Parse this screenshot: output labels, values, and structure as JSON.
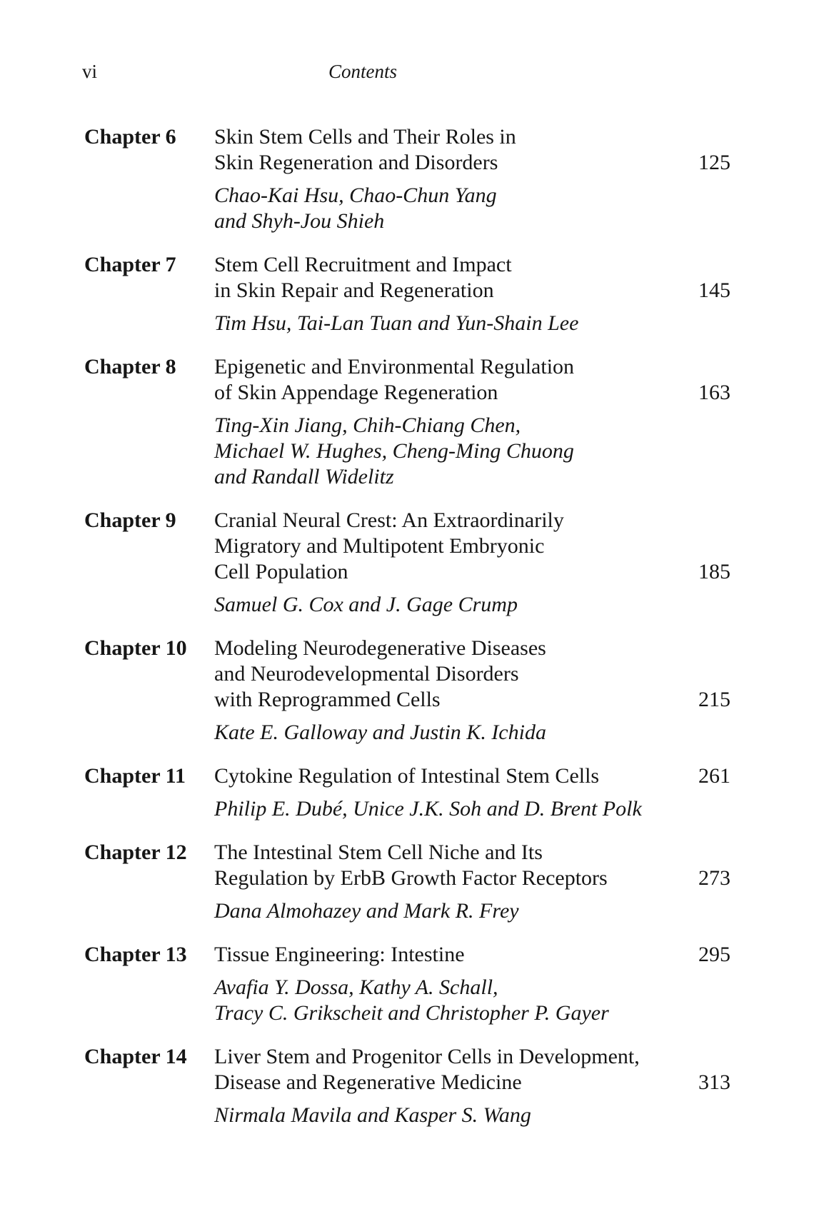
{
  "page": {
    "folio": "vi",
    "running_head": "Contents"
  },
  "toc": {
    "chapters": [
      {
        "label": "Chapter 6",
        "title_lines": [
          "Skin Stem Cells and Their Roles in",
          "Skin Regeneration and Disorders"
        ],
        "page": "125",
        "author_lines": [
          "Chao-Kai Hsu, Chao-Chun Yang",
          "and Shyh-Jou Shieh"
        ]
      },
      {
        "label": "Chapter 7",
        "title_lines": [
          "Stem Cell Recruitment and Impact",
          "in Skin Repair and Regeneration"
        ],
        "page": "145",
        "author_lines": [
          "Tim Hsu, Tai-Lan Tuan and Yun-Shain Lee"
        ]
      },
      {
        "label": "Chapter 8",
        "title_lines": [
          "Epigenetic and Environmental Regulation",
          "of Skin Appendage Regeneration"
        ],
        "page": "163",
        "author_lines": [
          "Ting-Xin Jiang, Chih-Chiang Chen,",
          "Michael W. Hughes, Cheng-Ming Chuong",
          "and Randall Widelitz"
        ]
      },
      {
        "label": "Chapter 9",
        "title_lines": [
          "Cranial Neural Crest: An Extraordinarily",
          "Migratory and Multipotent Embryonic",
          "Cell Population"
        ],
        "page": "185",
        "author_lines": [
          "Samuel G. Cox and J. Gage Crump"
        ]
      },
      {
        "label": "Chapter 10",
        "title_lines": [
          "Modeling Neurodegenerative Diseases",
          "and Neurodevelopmental Disorders",
          "with Reprogrammed Cells"
        ],
        "page": "215",
        "author_lines": [
          "Kate E. Galloway and Justin K. Ichida"
        ]
      },
      {
        "label": "Chapter 11",
        "title_lines": [
          "Cytokine Regulation of Intestinal Stem Cells"
        ],
        "page": "261",
        "author_lines": [
          "Philip E. Dubé, Unice J.K. Soh and D. Brent Polk"
        ]
      },
      {
        "label": "Chapter 12",
        "title_lines": [
          "The Intestinal Stem Cell Niche and Its",
          "Regulation by ErbB Growth Factor Receptors"
        ],
        "page": "273",
        "author_lines": [
          "Dana Almohazey and Mark R. Frey"
        ]
      },
      {
        "label": "Chapter 13",
        "title_lines": [
          "Tissue Engineering: Intestine"
        ],
        "page": "295",
        "author_lines": [
          "Avafia Y. Dossa, Kathy A. Schall,",
          "Tracy C. Grikscheit and Christopher P. Gayer"
        ]
      },
      {
        "label": "Chapter 14",
        "title_lines": [
          "Liver Stem and Progenitor Cells in Development,",
          "Disease and Regenerative Medicine"
        ],
        "page": "313",
        "author_lines": [
          "Nirmala Mavila and Kasper S. Wang"
        ]
      }
    ]
  }
}
